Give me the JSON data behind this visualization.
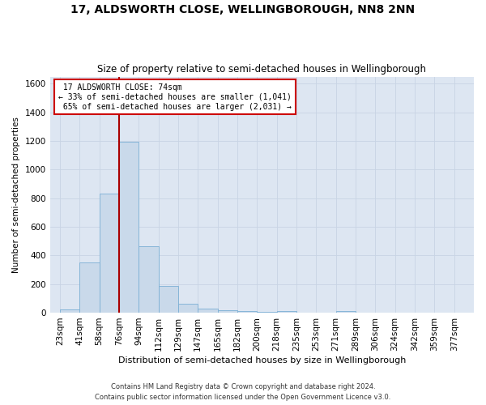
{
  "title1": "17, ALDSWORTH CLOSE, WELLINGBOROUGH, NN8 2NN",
  "title2": "Size of property relative to semi-detached houses in Wellingborough",
  "xlabel": "Distribution of semi-detached houses by size in Wellingborough",
  "ylabel": "Number of semi-detached properties",
  "footer": "Contains HM Land Registry data © Crown copyright and database right 2024.\nContains public sector information licensed under the Open Government Licence v3.0.",
  "categories": [
    "23sqm",
    "41sqm",
    "58sqm",
    "76sqm",
    "94sqm",
    "112sqm",
    "129sqm",
    "147sqm",
    "165sqm",
    "182sqm",
    "200sqm",
    "218sqm",
    "235sqm",
    "253sqm",
    "271sqm",
    "289sqm",
    "306sqm",
    "324sqm",
    "342sqm",
    "359sqm",
    "377sqm"
  ],
  "values": [
    25,
    350,
    830,
    1195,
    465,
    185,
    60,
    30,
    15,
    12,
    8,
    12,
    0,
    0,
    12,
    0,
    0,
    0,
    0,
    0,
    0
  ],
  "bar_color": "#c9d9ea",
  "bar_edge_color": "#7bafd4",
  "grid_color": "#c8d4e4",
  "bg_color": "#dde6f2",
  "property_label": "17 ALDSWORTH CLOSE: 74sqm",
  "pct_smaller": 33,
  "pct_larger": 65,
  "n_smaller": 1041,
  "n_larger": 2031,
  "vline_color": "#aa0000",
  "annotation_box_color": "#cc0000",
  "ylim": [
    0,
    1650
  ],
  "yticks": [
    0,
    200,
    400,
    600,
    800,
    1000,
    1200,
    1400,
    1600
  ]
}
